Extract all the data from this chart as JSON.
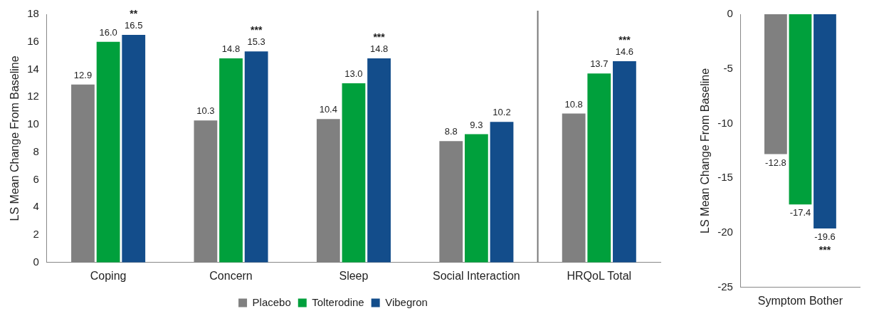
{
  "chart_data": [
    {
      "type": "bar",
      "ylabel": "LS Mean Change From Baseline",
      "categories": [
        "Coping",
        "Concern",
        "Sleep",
        "Social Interaction",
        "HRQoL Total"
      ],
      "series": [
        {
          "name": "Placebo",
          "color": "#808080",
          "values": [
            12.9,
            10.3,
            10.4,
            8.8,
            10.8
          ],
          "value_labels": [
            "12.9",
            "10.3",
            "10.4",
            "8.8",
            "10.8"
          ]
        },
        {
          "name": "Tolterodine",
          "color": "#00a03c",
          "values": [
            16.0,
            14.8,
            13.0,
            9.3,
            13.7
          ],
          "value_labels": [
            "16.0",
            "14.8",
            "13.0",
            "9.3",
            "13.7"
          ]
        },
        {
          "name": "Vibegron",
          "color": "#134d8b",
          "values": [
            16.5,
            15.3,
            14.8,
            10.2,
            14.6
          ],
          "value_labels": [
            "16.5",
            "15.3",
            "14.8",
            "10.2",
            "14.6"
          ]
        }
      ],
      "ylim": [
        0,
        18
      ],
      "yticks": [
        0,
        2,
        4,
        6,
        8,
        10,
        12,
        14,
        16,
        18
      ],
      "grid": false,
      "legend": "bottom",
      "annotations": [
        "**",
        "***",
        "***",
        "***"
      ]
    },
    {
      "type": "bar",
      "ylabel": "LS Mean Change From Baseline",
      "categories": [
        "Symptom Bother"
      ],
      "series": [
        {
          "color": "#808080",
          "values": [
            -12.8
          ],
          "value_labels": [
            "-12.8"
          ]
        },
        {
          "color": "#00a03c",
          "values": [
            -17.4
          ],
          "value_labels": [
            "-17.4"
          ]
        },
        {
          "color": "#134d8b",
          "values": [
            -19.6
          ],
          "value_labels": [
            "-19.6"
          ]
        }
      ],
      "ylim": [
        -25,
        0
      ],
      "yticks": [
        -25,
        -20,
        -15,
        -10,
        -5,
        0
      ],
      "grid": false,
      "legend": false,
      "annotations": [
        "***"
      ]
    }
  ]
}
